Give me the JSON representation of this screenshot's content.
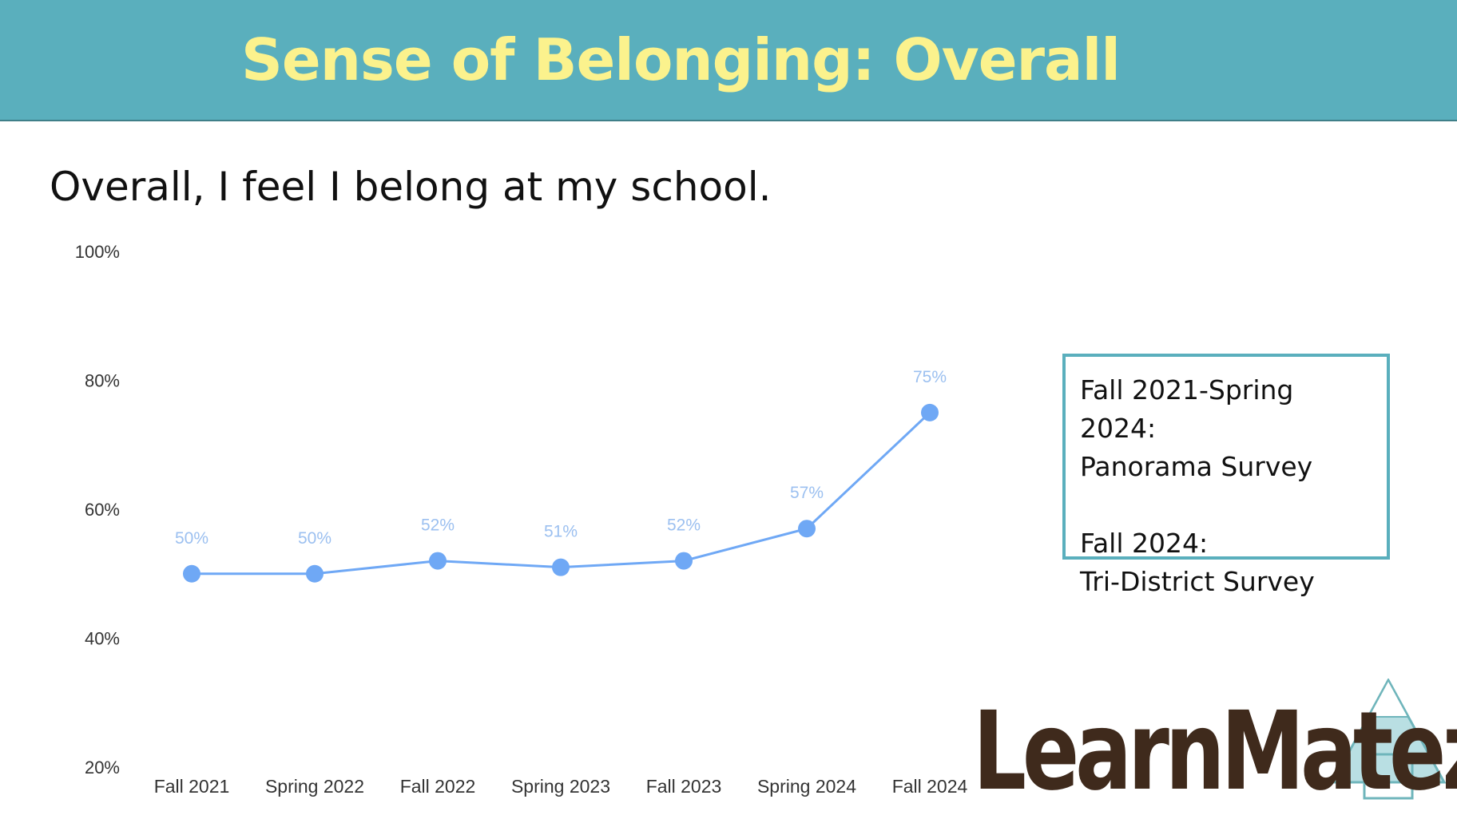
{
  "banner": {
    "title": "Sense of Belonging: Overall"
  },
  "question": "Overall, I feel I belong at my school.",
  "legend": {
    "line1": "Fall 2021-Spring 2024:",
    "line2": "Panorama Survey",
    "line3": "Fall 2024:",
    "line4": "Tri-District Survey"
  },
  "logo": {
    "text": "LearnMatez"
  },
  "chart_data": {
    "type": "line",
    "categories": [
      "Fall 2021",
      "Spring 2022",
      "Fall 2022",
      "Spring 2023",
      "Fall 2023",
      "Spring 2024",
      "Fall 2024"
    ],
    "series": [
      {
        "values": [
          50,
          50,
          52,
          51,
          52,
          57,
          75
        ]
      }
    ],
    "data_labels": [
      "50%",
      "50%",
      "52%",
      "51%",
      "52%",
      "57%",
      "75%"
    ],
    "y_ticks": [
      "20%",
      "40%",
      "60%",
      "80%",
      "100%"
    ],
    "ylim": [
      20,
      100
    ],
    "grid": false,
    "color": "#6fa8f5",
    "label_color": "#9cc0f0"
  }
}
